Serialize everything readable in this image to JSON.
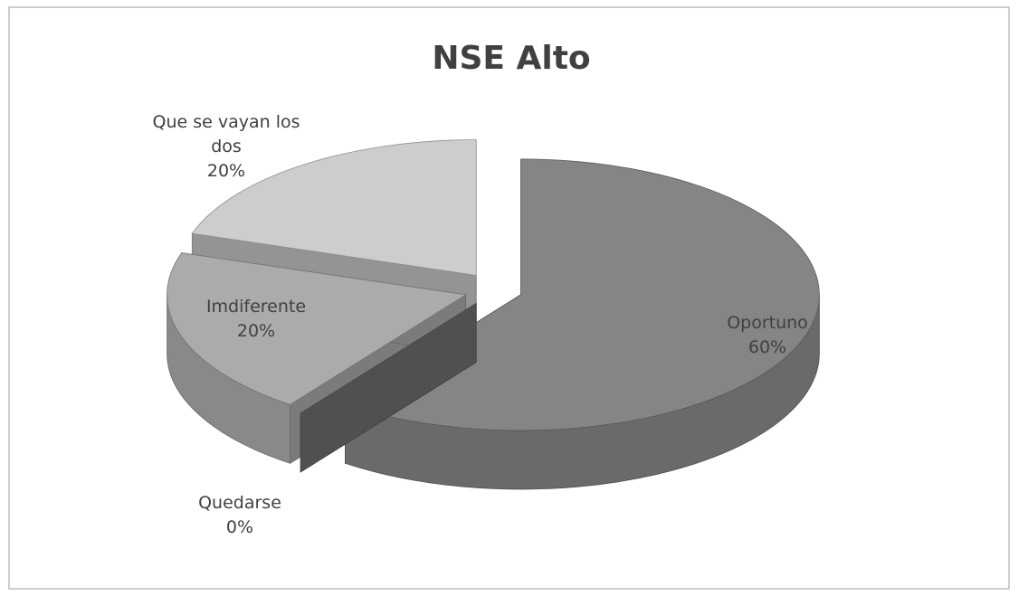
{
  "chart_data": {
    "type": "pie3d",
    "title": "NSE Alto",
    "categories": [
      "Oportuno",
      "Quedarse",
      "Imdiferente",
      "Que se vayan los dos"
    ],
    "values": [
      60,
      0,
      20,
      20
    ],
    "value_labels": [
      "60%",
      "0%",
      "20%",
      "20%"
    ],
    "colors": [
      "#858585",
      "#6f6f6f",
      "#ababab",
      "#cdcdcd"
    ]
  }
}
